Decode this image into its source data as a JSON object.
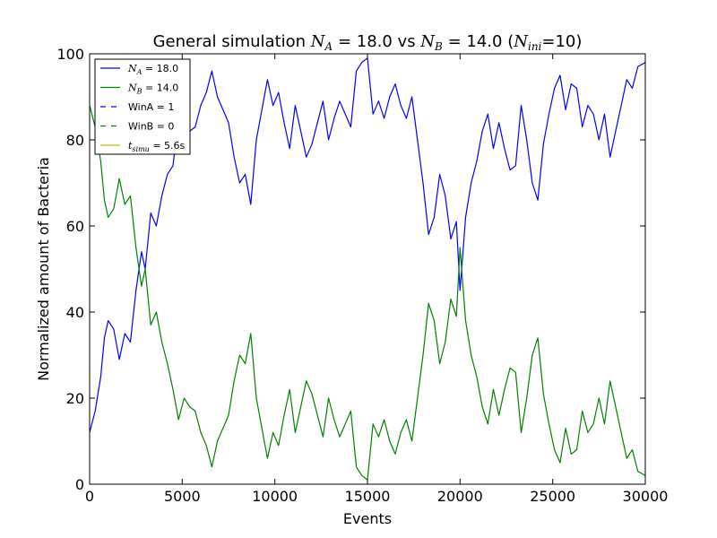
{
  "chart_data": {
    "type": "line",
    "title": {
      "prefix": "General simulation ",
      "a_symbol": "N",
      "a_sub": "A",
      "a_value": " = 18.0 vs ",
      "b_symbol": "N",
      "b_sub": "B",
      "b_value": " = 14.0 (",
      "ini_symbol": "N",
      "ini_sub": "ini",
      "ini_value": "=10)"
    },
    "xlabel": "Events",
    "ylabel": "Normalized amount of Bacteria",
    "xlim": [
      0,
      30000
    ],
    "ylim": [
      0,
      100
    ],
    "xticks": [
      0,
      5000,
      10000,
      15000,
      20000,
      25000,
      30000
    ],
    "yticks": [
      0,
      20,
      40,
      60,
      80,
      100
    ],
    "grid": false,
    "legend": {
      "placement": "top-left",
      "entries": [
        {
          "sym": "N",
          "sub": "A",
          "rest": " = 18.0",
          "color": "#0000ff",
          "style": "solid"
        },
        {
          "sym": "N",
          "sub": "B",
          "rest": " = 14.0",
          "color": "#008000",
          "style": "solid"
        },
        {
          "sym": "",
          "sub": "",
          "rest": "WinA = 1",
          "color": "#0000ff",
          "style": "dashed"
        },
        {
          "sym": "",
          "sub": "",
          "rest": "WinB = 0",
          "color": "#008000",
          "style": "dashed"
        },
        {
          "sym": "t",
          "sub": "simu",
          "rest": " = 5.6s",
          "color": "#bfbf00",
          "style": "solid"
        }
      ]
    },
    "series": [
      {
        "name": "N_A = 18.0",
        "color": "#0000ff",
        "x": [
          0,
          300,
          600,
          800,
          1000,
          1300,
          1600,
          1900,
          2200,
          2500,
          2800,
          3000,
          3300,
          3600,
          3900,
          4200,
          4500,
          4800,
          5100,
          5400,
          5700,
          6000,
          6300,
          6600,
          6900,
          7200,
          7500,
          7800,
          8100,
          8400,
          8700,
          9000,
          9300,
          9600,
          9900,
          10200,
          10500,
          10800,
          11100,
          11400,
          11700,
          12000,
          12300,
          12600,
          12900,
          13200,
          13500,
          13800,
          14100,
          14400,
          14700,
          15000,
          15300,
          15600,
          15900,
          16200,
          16500,
          16800,
          17100,
          17400,
          17700,
          18000,
          18300,
          18600,
          18900,
          19200,
          19500,
          19800,
          20000,
          20300,
          20600,
          20900,
          21200,
          21500,
          21800,
          22100,
          22400,
          22700,
          23000,
          23300,
          23600,
          23900,
          24200,
          24500,
          24800,
          25100,
          25400,
          25700,
          26000,
          26300,
          26600,
          26900,
          27200,
          27500,
          27800,
          28100,
          28400,
          28700,
          29000,
          29300,
          29600,
          30000
        ],
        "y": [
          12,
          17,
          25,
          34,
          38,
          36,
          29,
          35,
          33,
          45,
          54,
          50,
          63,
          60,
          67,
          72,
          74,
          85,
          80,
          82,
          83,
          88,
          91,
          96,
          90,
          87,
          84,
          76,
          70,
          72,
          65,
          80,
          87,
          94,
          88,
          91,
          84,
          78,
          88,
          82,
          76,
          79,
          84,
          89,
          80,
          85,
          89,
          86,
          83,
          96,
          98,
          99,
          86,
          89,
          85,
          90,
          93,
          88,
          85,
          90,
          80,
          70,
          58,
          62,
          72,
          67,
          57,
          61,
          45,
          62,
          70,
          75,
          82,
          86,
          78,
          84,
          78,
          73,
          74,
          88,
          80,
          70,
          66,
          79,
          86,
          92,
          95,
          87,
          93,
          92,
          83,
          88,
          86,
          80,
          86,
          76,
          82,
          88,
          94,
          92,
          97,
          98
        ]
      },
      {
        "name": "N_B = 14.0",
        "color": "#008000",
        "x": [
          0,
          300,
          600,
          800,
          1000,
          1300,
          1600,
          1900,
          2200,
          2500,
          2800,
          3000,
          3300,
          3600,
          3900,
          4200,
          4500,
          4800,
          5100,
          5400,
          5700,
          6000,
          6300,
          6600,
          6900,
          7200,
          7500,
          7800,
          8100,
          8400,
          8700,
          9000,
          9300,
          9600,
          9900,
          10200,
          10500,
          10800,
          11100,
          11400,
          11700,
          12000,
          12300,
          12600,
          12900,
          13200,
          13500,
          13800,
          14100,
          14400,
          14700,
          15000,
          15300,
          15600,
          15900,
          16200,
          16500,
          16800,
          17100,
          17400,
          17700,
          18000,
          18300,
          18600,
          18900,
          19200,
          19500,
          19800,
          20000,
          20300,
          20600,
          20900,
          21200,
          21500,
          21800,
          22100,
          22400,
          22700,
          23000,
          23300,
          23600,
          23900,
          24200,
          24500,
          24800,
          25100,
          25400,
          25700,
          26000,
          26300,
          26600,
          26900,
          27200,
          27500,
          27800,
          28100,
          28400,
          28700,
          29000,
          29300,
          29600,
          30000
        ],
        "y": [
          88,
          83,
          75,
          66,
          62,
          64,
          71,
          65,
          67,
          55,
          46,
          50,
          37,
          40,
          33,
          28,
          22,
          15,
          20,
          18,
          17,
          12,
          9,
          4,
          10,
          13,
          16,
          24,
          30,
          28,
          35,
          20,
          13,
          6,
          12,
          9,
          16,
          22,
          12,
          18,
          24,
          21,
          16,
          11,
          20,
          15,
          11,
          14,
          17,
          4,
          2,
          1,
          14,
          11,
          15,
          10,
          7,
          12,
          15,
          10,
          20,
          30,
          42,
          38,
          28,
          33,
          43,
          39,
          55,
          38,
          30,
          25,
          18,
          14,
          22,
          16,
          22,
          27,
          26,
          12,
          20,
          30,
          34,
          21,
          14,
          8,
          5,
          13,
          7,
          8,
          17,
          12,
          14,
          20,
          14,
          24,
          18,
          12,
          6,
          8,
          3,
          2
        ]
      }
    ]
  }
}
